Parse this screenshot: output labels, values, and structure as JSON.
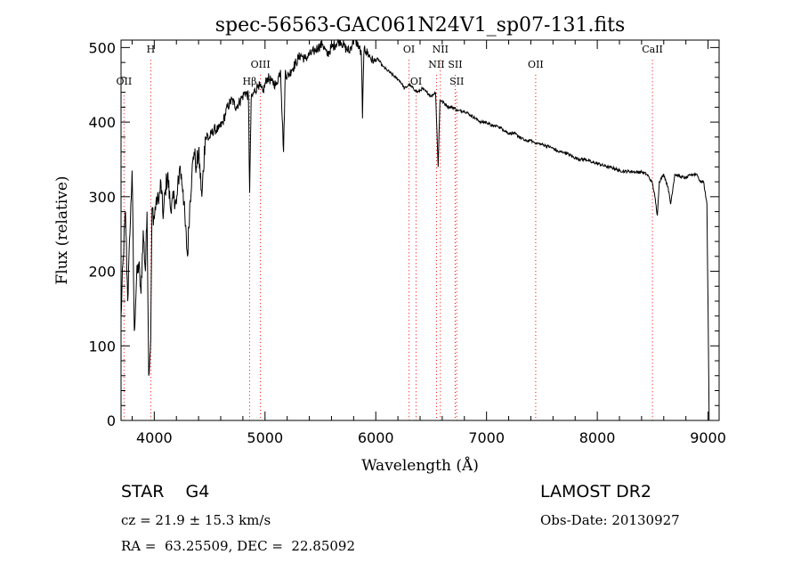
{
  "chart_data": {
    "type": "line",
    "title": "spec-56563-GAC061N24V1_sp07-131.fits",
    "xlabel": "Wavelength (Å)",
    "ylabel": "Flux (relative)",
    "xlim": [
      3700,
      9100
    ],
    "ylim": [
      0,
      510
    ],
    "xticks": [
      4000,
      5000,
      6000,
      7000,
      8000,
      9000
    ],
    "yticks": [
      0,
      100,
      200,
      300,
      400,
      500
    ],
    "grid": false,
    "line_color": "#000000",
    "marker_line_color": "#ff0000",
    "series": [
      {
        "x": [
          3700,
          3720,
          3740,
          3760,
          3780,
          3800,
          3820,
          3840,
          3860,
          3880,
          3900,
          3920,
          3935,
          3950,
          3968,
          3980,
          4000,
          4020,
          4040,
          4060,
          4080,
          4100,
          4120,
          4150,
          4180,
          4200,
          4230,
          4260,
          4280,
          4300,
          4320,
          4340,
          4360,
          4380,
          4400,
          4430,
          4460,
          4500,
          4540,
          4580,
          4620,
          4660,
          4700,
          4740,
          4780,
          4820,
          4850,
          4861,
          4875,
          4900,
          4940,
          4980,
          5020,
          5060,
          5100,
          5140,
          5167,
          5183,
          5200,
          5240,
          5280,
          5320,
          5360,
          5400,
          5440,
          5480,
          5520,
          5560,
          5600,
          5640,
          5680,
          5720,
          5760,
          5800,
          5840,
          5870,
          5880,
          5889,
          5896,
          5910,
          5940,
          5980,
          6020,
          6060,
          6100,
          6140,
          6180,
          6220,
          6260,
          6300,
          6340,
          6380,
          6420,
          6460,
          6500,
          6540,
          6563,
          6580,
          6620,
          6660,
          6700,
          6740,
          6800,
          6850,
          6900,
          6950,
          7000,
          7050,
          7100,
          7150,
          7200,
          7250,
          7300,
          7350,
          7400,
          7450,
          7500,
          7550,
          7600,
          7650,
          7700,
          7750,
          7800,
          7850,
          7900,
          7950,
          8000,
          8050,
          8100,
          8150,
          8200,
          8250,
          8300,
          8350,
          8400,
          8450,
          8498,
          8520,
          8542,
          8560,
          8600,
          8640,
          8662,
          8700,
          8750,
          8800,
          8850,
          8900,
          8930,
          8960,
          8990,
          9000,
          9010
        ],
        "values": [
          140,
          220,
          280,
          160,
          250,
          335,
          120,
          190,
          210,
          170,
          255,
          200,
          280,
          60,
          110,
          285,
          270,
          300,
          290,
          320,
          270,
          310,
          330,
          280,
          300,
          290,
          340,
          310,
          260,
          220,
          290,
          330,
          360,
          340,
          360,
          300,
          380,
          380,
          390,
          390,
          400,
          420,
          430,
          420,
          430,
          440,
          435,
          305,
          430,
          440,
          450,
          440,
          460,
          455,
          450,
          470,
          360,
          470,
          460,
          470,
          480,
          490,
          485,
          490,
          495,
          500,
          505,
          490,
          500,
          505,
          510,
          500,
          495,
          510,
          505,
          490,
          405,
          470,
          500,
          495,
          490,
          480,
          485,
          475,
          470,
          465,
          460,
          455,
          445,
          450,
          445,
          440,
          445,
          440,
          435,
          440,
          340,
          430,
          425,
          420,
          420,
          415,
          415,
          410,
          405,
          400,
          400,
          395,
          395,
          390,
          385,
          385,
          380,
          375,
          375,
          372,
          370,
          368,
          365,
          360,
          360,
          356,
          352,
          350,
          350,
          346,
          345,
          342,
          340,
          338,
          335,
          334,
          334,
          333,
          333,
          330,
          318,
          300,
          275,
          320,
          330,
          312,
          290,
          330,
          327,
          325,
          330,
          330,
          320,
          320,
          290,
          150,
          0
        ]
      }
    ],
    "line_markers": [
      {
        "label": "OII",
        "x": 3727,
        "label_y": 450
      },
      {
        "label": "H",
        "x": 3969,
        "label_y": 493
      },
      {
        "label": "OIII",
        "x": 4959,
        "label_y": 473
      },
      {
        "label": "Hβ",
        "x": 4861,
        "label_y": 450
      },
      {
        "label": "OI",
        "x": 6300,
        "label_y": 493
      },
      {
        "label": "OI",
        "x": 6364,
        "label_y": 450
      },
      {
        "label": "NII",
        "x": 6583,
        "label_y": 493
      },
      {
        "label": "NII",
        "x": 6548,
        "label_y": 473
      },
      {
        "label": "SII",
        "x": 6717,
        "label_y": 473
      },
      {
        "label": "SII",
        "x": 6731,
        "label_y": 450
      },
      {
        "label": "OII",
        "x": 7444,
        "label_y": 473
      },
      {
        "label": "CaII",
        "x": 8498,
        "label_y": 493
      }
    ]
  },
  "info": {
    "class_line": "STAR    G4",
    "cz_line": "cz = 21.9 ± 15.3 km/s",
    "radec_line": "RA =  63.25509, DEC =  22.85092",
    "survey": "LAMOST DR2",
    "obs_date": "Obs-Date: 20130927"
  }
}
